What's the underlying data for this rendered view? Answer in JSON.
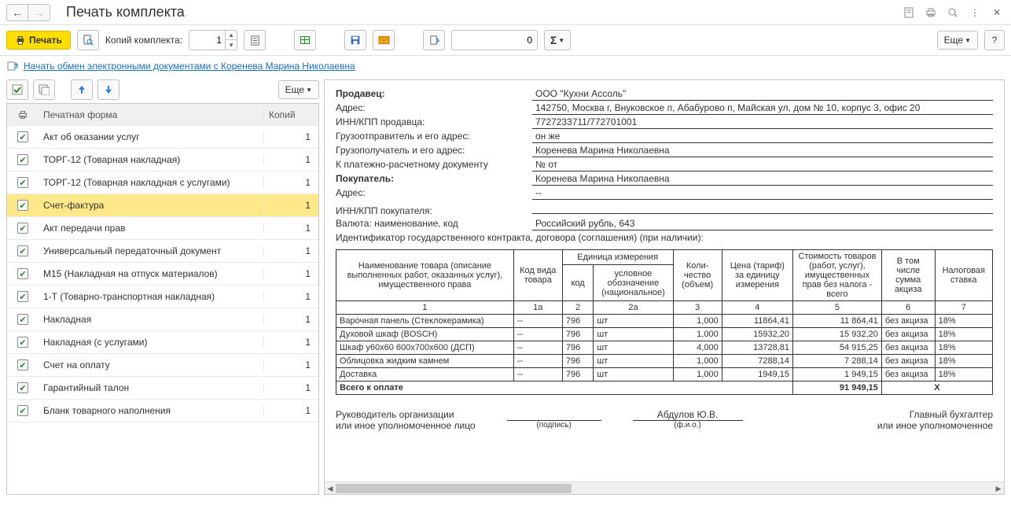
{
  "title": "Печать комплекта",
  "toolbar": {
    "print_label": "Печать",
    "copies_label": "Копий комплекта:",
    "copies_value": "1",
    "num_value": "0",
    "more_label": "Еще"
  },
  "linkbar": {
    "link_text": "Начать обмен электронными документами с Коренева Марина Николаевна"
  },
  "forms_panel": {
    "more_label": "Еще",
    "header_name": "Печатная форма",
    "header_copies": "Копий",
    "selected_index": 3,
    "rows": [
      {
        "name": "Акт об оказании услуг",
        "copies": "1"
      },
      {
        "name": "ТОРГ-12 (Товарная накладная)",
        "copies": "1"
      },
      {
        "name": "ТОРГ-12 (Товарная накладная с услугами)",
        "copies": "1"
      },
      {
        "name": "Счет-фактура",
        "copies": "1"
      },
      {
        "name": "Акт передачи прав",
        "copies": "1"
      },
      {
        "name": "Универсальный передаточный документ",
        "copies": "1"
      },
      {
        "name": "М15 (Накладная на отпуск материалов)",
        "copies": "1"
      },
      {
        "name": "1-Т (Товарно-транспортная накладная)",
        "copies": "1"
      },
      {
        "name": "Накладная",
        "copies": "1"
      },
      {
        "name": "Накладная (с услугами)",
        "copies": "1"
      },
      {
        "name": "Счет на оплату",
        "copies": "1"
      },
      {
        "name": "Гарантийный талон",
        "copies": "1"
      },
      {
        "name": "Бланк товарного наполнения",
        "copies": "1"
      }
    ]
  },
  "document": {
    "fields": [
      {
        "label": "Продавец:",
        "bold": true,
        "value": "ООО \"Кухни Ассоль\""
      },
      {
        "label": "Адрес:",
        "value": "142750, Москва г, Внуковское п, Абабурово п, Майская ул, дом № 10, корпус 3, офис 20"
      },
      {
        "label": "ИНН/КПП продавца:",
        "value": "7727233711/772701001"
      },
      {
        "label": "Грузоотправитель и его адрес:",
        "value": "он же"
      },
      {
        "label": "Грузополучатель и его адрес:",
        "value": "Коренева Марина Николаевна"
      },
      {
        "label": "К платежно-расчетному документу",
        "value": "№      от"
      },
      {
        "label": "Покупатель:",
        "bold": true,
        "value": "Коренева Марина Николаевна"
      },
      {
        "label": "Адрес:",
        "value": "--"
      },
      {
        "label": "ИНН/КПП покупателя:",
        "value": ""
      },
      {
        "label": "Валюта: наименование, код",
        "value": "Российский рубль, 643"
      },
      {
        "label": "Идентификатор государственного контракта, договора (соглашения) (при наличии):",
        "value": "",
        "full": true
      }
    ],
    "table": {
      "headers": {
        "name": "Наименование товара (описание выполненных работ, оказанных услуг), имущественного права",
        "code": "Код вида товара",
        "unit": "Единица измерения",
        "unit_code": "код",
        "unit_label": "условное обозначение (национальное)",
        "qty": "Коли-чество (объем)",
        "price": "Цена (тариф) за единицу измерения",
        "cost": "Стоимость товаров (работ, услуг), имущественных прав без налога - всего",
        "excise": "В том числе сумма акциза",
        "tax": "Налоговая ставка"
      },
      "colnums": [
        "1",
        "1а",
        "2",
        "2а",
        "3",
        "4",
        "5",
        "6",
        "7"
      ],
      "rows": [
        {
          "name": "Варочная панель (Стеклокерамика)",
          "code": "--",
          "ucode": "796",
          "ulabel": "шт",
          "qty": "1,000",
          "price": "11864,41",
          "cost": "11 864,41",
          "excise": "без акциза",
          "tax": "18%"
        },
        {
          "name": "Духовой шкаф (BOSCH)",
          "code": "--",
          "ucode": "796",
          "ulabel": "шт",
          "qty": "1,000",
          "price": "15932,20",
          "cost": "15 932,20",
          "excise": "без акциза",
          "tax": "18%"
        },
        {
          "name": "Шкаф у60x60 600x700x600 (ДСП)",
          "code": "--",
          "ucode": "796",
          "ulabel": "шт",
          "qty": "4,000",
          "price": "13728,81",
          "cost": "54 915,25",
          "excise": "без акциза",
          "tax": "18%"
        },
        {
          "name": "Облицовка жидким камнем",
          "code": "--",
          "ucode": "796",
          "ulabel": "шт",
          "qty": "1,000",
          "price": "7288,14",
          "cost": "7 288,14",
          "excise": "без акциза",
          "tax": "18%"
        },
        {
          "name": "Доставка",
          "code": "--",
          "ucode": "796",
          "ulabel": "шт",
          "qty": "1,000",
          "price": "1949,15",
          "cost": "1 949,15",
          "excise": "без акциза",
          "tax": "18%"
        }
      ],
      "total_label": "Всего к оплате",
      "total_cost": "91 949,15",
      "total_excise": "Х"
    },
    "signatures": {
      "left_role1": "Руководитель организации",
      "left_role2": "или иное уполномоченное лицо",
      "sign_sub": "(подпись)",
      "fio": "Абдулов Ю.В.",
      "fio_sub": "(ф.и.о.)",
      "right_role1": "Главный бухгалтер",
      "right_role2": "или иное уполномоченное"
    }
  }
}
